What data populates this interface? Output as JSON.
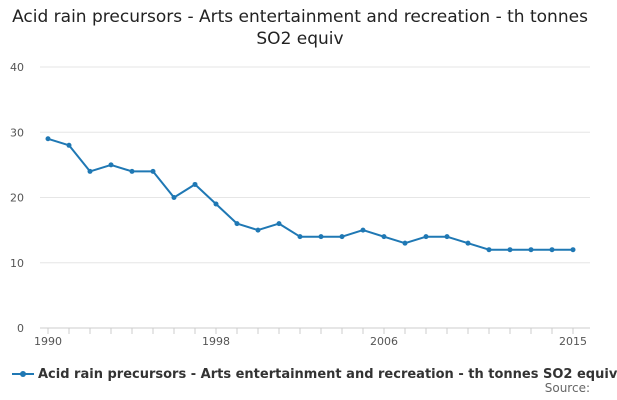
{
  "chart_data": {
    "type": "line",
    "title": "Acid rain precursors - Arts entertainment and recreation - th tonnes SO2 equiv",
    "xlabel": "",
    "ylabel": "",
    "x": [
      1990,
      1991,
      1992,
      1993,
      1994,
      1995,
      1996,
      1997,
      1998,
      1999,
      2000,
      2001,
      2002,
      2003,
      2004,
      2005,
      2006,
      2007,
      2008,
      2009,
      2010,
      2011,
      2012,
      2013,
      2014,
      2015
    ],
    "series": [
      {
        "name": "Acid rain precursors - Arts entertainment and recreation - th tonnes SO2 equiv",
        "values": [
          29,
          28,
          24,
          25,
          24,
          24,
          20,
          22,
          19,
          16,
          15,
          16,
          14,
          14,
          14,
          15,
          14,
          13,
          14,
          14,
          13,
          12,
          12,
          12,
          12,
          12
        ],
        "color": "#1f78b4"
      }
    ],
    "xlim": [
      1990,
      2015
    ],
    "ylim": [
      0,
      40
    ],
    "yticks": [
      0,
      10,
      20,
      30,
      40
    ],
    "xtick_labels": [
      "1990",
      "1998",
      "2006",
      "2015"
    ],
    "grid": true,
    "legend_position": "bottom-left"
  },
  "footer": {
    "source_label": "Source:"
  }
}
